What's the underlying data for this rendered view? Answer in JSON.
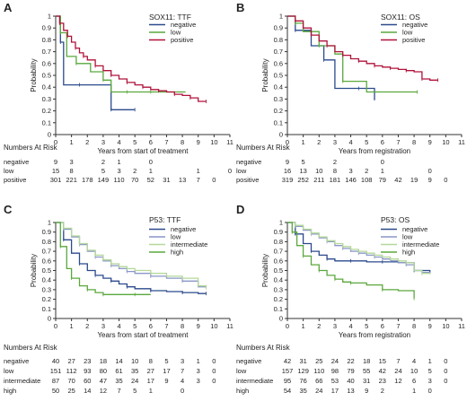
{
  "chart_data": [
    {
      "panel": "A",
      "type": "line",
      "title": "SOX11: TTF",
      "xlabel": "Years from start of treatment",
      "ylabel": "Probability",
      "xlim": [
        0,
        11
      ],
      "ylim": [
        0,
        1
      ],
      "xticks": [
        0,
        1,
        2,
        3,
        4,
        5,
        6,
        7,
        8,
        9,
        10,
        11
      ],
      "yticks": [
        0,
        0.1,
        0.2,
        0.3,
        0.4,
        0.5,
        0.6,
        0.7,
        0.8,
        0.9,
        1
      ],
      "legend_position": "top-right",
      "series": [
        {
          "name": "negative",
          "color": "#2b4a8c",
          "x": [
            0,
            0.3,
            0.5,
            1.5,
            2.5,
            3.5,
            4.0,
            5.0
          ],
          "values": [
            1,
            0.78,
            0.42,
            0.42,
            0.42,
            0.21,
            0.21,
            0.21
          ]
        },
        {
          "name": "low",
          "color": "#5aa83c",
          "x": [
            0,
            0.3,
            0.7,
            1.3,
            2.2,
            3.0,
            3.5,
            4.5,
            5.0,
            6.0,
            8.2
          ],
          "values": [
            1,
            0.86,
            0.66,
            0.6,
            0.53,
            0.46,
            0.36,
            0.36,
            0.36,
            0.36,
            0.36
          ]
        },
        {
          "name": "positive",
          "color": "#b0123a",
          "x": [
            0,
            0.25,
            0.5,
            0.75,
            1,
            1.25,
            1.5,
            1.75,
            2,
            2.5,
            3,
            3.5,
            4,
            4.5,
            5,
            5.5,
            6,
            6.5,
            7,
            7.5,
            8,
            8.5,
            9,
            9.5
          ],
          "values": [
            1,
            0.94,
            0.88,
            0.83,
            0.78,
            0.73,
            0.69,
            0.66,
            0.63,
            0.58,
            0.54,
            0.5,
            0.47,
            0.44,
            0.42,
            0.4,
            0.38,
            0.37,
            0.36,
            0.34,
            0.33,
            0.31,
            0.28,
            0.28
          ]
        }
      ],
      "risk_table": {
        "title": "Numbers At Risk",
        "rows": [
          {
            "label": "negative",
            "values": [
              "9",
              "3",
              "",
              "2",
              "1",
              "",
              "0",
              "",
              "",
              "",
              "",
              ""
            ]
          },
          {
            "label": "low",
            "values": [
              "15",
              "8",
              "",
              "5",
              "3",
              "2",
              "1",
              "",
              "",
              "1",
              "",
              "0"
            ]
          },
          {
            "label": "positive",
            "values": [
              "301",
              "221",
              "178",
              "149",
              "110",
              "70",
              "52",
              "31",
              "13",
              "7",
              "0",
              ""
            ]
          }
        ]
      }
    },
    {
      "panel": "B",
      "type": "line",
      "title": "SOX11: OS",
      "xlabel": "Years from registration",
      "ylabel": "Probability",
      "xlim": [
        0,
        11
      ],
      "ylim": [
        0,
        1
      ],
      "xticks": [
        0,
        1,
        2,
        3,
        4,
        5,
        6,
        7,
        8,
        9,
        10,
        11
      ],
      "yticks": [
        0,
        0.1,
        0.2,
        0.3,
        0.4,
        0.5,
        0.6,
        0.7,
        0.8,
        0.9,
        1
      ],
      "legend_position": "top-right",
      "series": [
        {
          "name": "negative",
          "color": "#2b4a8c",
          "x": [
            0,
            0.5,
            1.5,
            2.3,
            3.0,
            4.5,
            5.5
          ],
          "values": [
            1,
            0.88,
            0.75,
            0.63,
            0.39,
            0.39,
            0.29
          ]
        },
        {
          "name": "low",
          "color": "#5aa83c",
          "x": [
            0,
            0.5,
            1.0,
            2.0,
            3.0,
            3.5,
            5.0,
            8.2
          ],
          "values": [
            1,
            0.94,
            0.87,
            0.75,
            0.68,
            0.45,
            0.36,
            0.36
          ]
        },
        {
          "name": "positive",
          "color": "#b0123a",
          "x": [
            0,
            0.5,
            1,
            1.5,
            2,
            2.5,
            3,
            3.5,
            4,
            4.5,
            5,
            5.5,
            6,
            6.5,
            7,
            7.5,
            8,
            8.5,
            9,
            9.5
          ],
          "values": [
            1,
            0.96,
            0.9,
            0.84,
            0.79,
            0.75,
            0.7,
            0.67,
            0.64,
            0.62,
            0.6,
            0.58,
            0.57,
            0.56,
            0.55,
            0.54,
            0.53,
            0.47,
            0.46,
            0.46
          ]
        }
      ],
      "risk_table": {
        "title": "Numbers At Risk",
        "rows": [
          {
            "label": "negative",
            "values": [
              "9",
              "5",
              "",
              "2",
              "",
              "",
              "0",
              "",
              "",
              "",
              "",
              ""
            ]
          },
          {
            "label": "low",
            "values": [
              "16",
              "13",
              "10",
              "8",
              "3",
              "2",
              "1",
              "",
              "",
              "0",
              "",
              ""
            ]
          },
          {
            "label": "positive",
            "values": [
              "319",
              "252",
              "211",
              "181",
              "146",
              "108",
              "79",
              "42",
              "19",
              "9",
              "0",
              ""
            ]
          }
        ]
      }
    },
    {
      "panel": "C",
      "type": "line",
      "title": "P53: TTF",
      "xlabel": "Years from start of treatment",
      "ylabel": "Probability",
      "xlim": [
        0,
        11
      ],
      "ylim": [
        0,
        1
      ],
      "xticks": [
        0,
        1,
        2,
        3,
        4,
        5,
        6,
        7,
        8,
        9,
        10,
        11
      ],
      "yticks": [
        0,
        0.1,
        0.2,
        0.3,
        0.4,
        0.5,
        0.6,
        0.7,
        0.8,
        0.9,
        1
      ],
      "legend_position": "top-right",
      "series": [
        {
          "name": "negative",
          "color": "#2b4a8c",
          "x": [
            0,
            0.5,
            1,
            1.5,
            2,
            2.5,
            3,
            3.5,
            4,
            4.5,
            5,
            6,
            7,
            8,
            9,
            9.5
          ],
          "values": [
            1,
            0.82,
            0.68,
            0.57,
            0.5,
            0.45,
            0.42,
            0.39,
            0.36,
            0.33,
            0.31,
            0.29,
            0.28,
            0.27,
            0.26,
            0.26
          ]
        },
        {
          "name": "low",
          "color": "#8a96c8",
          "x": [
            0,
            0.5,
            1,
            1.5,
            2,
            2.5,
            3,
            3.5,
            4,
            4.5,
            5,
            6,
            7,
            8,
            9,
            9.5
          ],
          "values": [
            1,
            0.93,
            0.85,
            0.77,
            0.7,
            0.64,
            0.6,
            0.55,
            0.52,
            0.49,
            0.47,
            0.44,
            0.42,
            0.39,
            0.33,
            0.33
          ]
        },
        {
          "name": "intermediate",
          "color": "#b4d89a",
          "x": [
            0,
            0.5,
            1,
            1.5,
            2,
            2.5,
            3,
            3.5,
            4,
            4.5,
            5,
            6,
            7,
            8,
            9,
            9.5
          ],
          "values": [
            1,
            0.94,
            0.86,
            0.78,
            0.71,
            0.66,
            0.61,
            0.57,
            0.54,
            0.52,
            0.5,
            0.47,
            0.44,
            0.42,
            0.34,
            0.32
          ]
        },
        {
          "name": "high",
          "color": "#5aa83c",
          "x": [
            0,
            0.3,
            0.7,
            1,
            1.5,
            2,
            2.5,
            3,
            4,
            5,
            6
          ],
          "values": [
            1,
            0.75,
            0.52,
            0.42,
            0.34,
            0.3,
            0.27,
            0.25,
            0.25,
            0.25,
            0.25
          ]
        }
      ],
      "risk_table": {
        "title": "Numbers At Risk",
        "rows": [
          {
            "label": "negative",
            "values": [
              "40",
              "27",
              "23",
              "18",
              "14",
              "10",
              "8",
              "5",
              "3",
              "1",
              "0",
              ""
            ]
          },
          {
            "label": "low",
            "values": [
              "151",
              "112",
              "93",
              "80",
              "61",
              "35",
              "27",
              "17",
              "7",
              "3",
              "0",
              ""
            ]
          },
          {
            "label": "intermediate",
            "values": [
              "87",
              "70",
              "60",
              "47",
              "35",
              "24",
              "17",
              "9",
              "4",
              "3",
              "0",
              ""
            ]
          },
          {
            "label": "high",
            "values": [
              "50",
              "25",
              "14",
              "12",
              "7",
              "5",
              "1",
              "",
              "0",
              "",
              "",
              ""
            ]
          }
        ]
      }
    },
    {
      "panel": "D",
      "type": "line",
      "title": "P53: OS",
      "xlabel": "Years from registration",
      "ylabel": "Probability",
      "xlim": [
        0,
        11
      ],
      "ylim": [
        0,
        1
      ],
      "xticks": [
        0,
        1,
        2,
        3,
        4,
        5,
        6,
        7,
        8,
        9,
        10,
        11
      ],
      "yticks": [
        0,
        0.1,
        0.2,
        0.3,
        0.4,
        0.5,
        0.6,
        0.7,
        0.8,
        0.9,
        1
      ],
      "legend_position": "top-right",
      "series": [
        {
          "name": "negative",
          "color": "#2b4a8c",
          "x": [
            0,
            0.5,
            1,
            1.5,
            2,
            2.5,
            3,
            4,
            5,
            6,
            7,
            8,
            9
          ],
          "values": [
            1,
            0.88,
            0.78,
            0.7,
            0.66,
            0.62,
            0.6,
            0.6,
            0.59,
            0.59,
            0.58,
            0.5,
            0.47
          ]
        },
        {
          "name": "low",
          "color": "#8a96c8",
          "x": [
            0,
            0.5,
            1,
            1.5,
            2,
            2.5,
            3,
            3.5,
            4,
            4.5,
            5,
            5.5,
            6,
            6.5,
            7,
            7.5,
            8,
            8.5,
            9
          ],
          "values": [
            1,
            0.96,
            0.92,
            0.88,
            0.84,
            0.8,
            0.76,
            0.73,
            0.7,
            0.68,
            0.66,
            0.64,
            0.62,
            0.6,
            0.58,
            0.56,
            0.5,
            0.48,
            0.47
          ]
        },
        {
          "name": "intermediate",
          "color": "#b4d89a",
          "x": [
            0,
            0.5,
            1,
            1.5,
            2,
            2.5,
            3,
            3.5,
            4,
            4.5,
            5,
            5.5,
            6,
            6.5,
            7,
            7.5,
            8,
            8.5,
            9
          ],
          "values": [
            1,
            0.97,
            0.93,
            0.89,
            0.85,
            0.81,
            0.78,
            0.75,
            0.72,
            0.7,
            0.68,
            0.66,
            0.64,
            0.62,
            0.6,
            0.58,
            0.5,
            0.47,
            0.46
          ]
        },
        {
          "name": "high",
          "color": "#5aa83c",
          "x": [
            0,
            0.3,
            0.6,
            1,
            1.5,
            2,
            2.5,
            3,
            3.5,
            4,
            5,
            6,
            7,
            8
          ],
          "values": [
            1,
            0.9,
            0.76,
            0.65,
            0.56,
            0.5,
            0.45,
            0.41,
            0.38,
            0.37,
            0.35,
            0.3,
            0.29,
            0.21
          ]
        }
      ],
      "risk_table": {
        "title": "Numbers At Risk",
        "rows": [
          {
            "label": "negative",
            "values": [
              "42",
              "31",
              "25",
              "24",
              "22",
              "18",
              "15",
              "7",
              "4",
              "1",
              "0",
              ""
            ]
          },
          {
            "label": "low",
            "values": [
              "157",
              "129",
              "110",
              "98",
              "79",
              "55",
              "42",
              "24",
              "10",
              "5",
              "0",
              ""
            ]
          },
          {
            "label": "intermediate",
            "values": [
              "95",
              "76",
              "66",
              "53",
              "40",
              "31",
              "23",
              "12",
              "6",
              "3",
              "0",
              ""
            ]
          },
          {
            "label": "high",
            "values": [
              "54",
              "35",
              "24",
              "17",
              "13",
              "9",
              "2",
              "",
              "1",
              "0",
              "",
              ""
            ]
          }
        ]
      }
    }
  ]
}
